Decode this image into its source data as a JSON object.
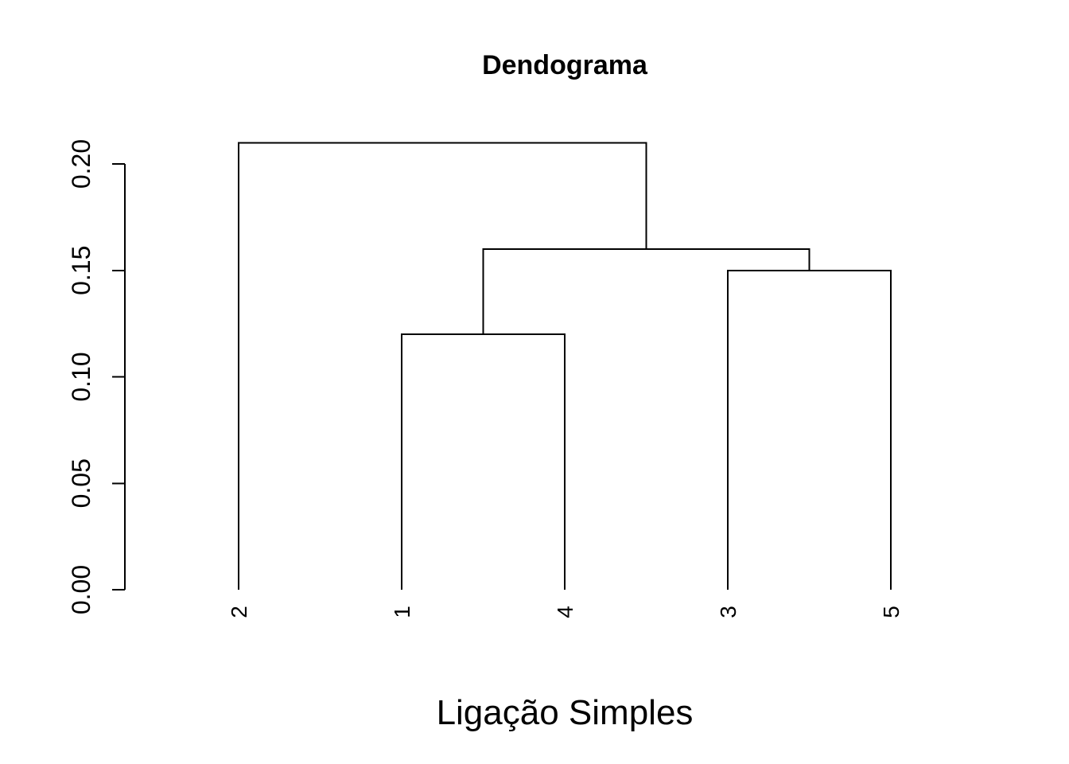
{
  "chart_data": {
    "type": "dendrogram",
    "title": "Dendograma",
    "xlabel": "Ligação Simples",
    "ylabel": "",
    "ylim": [
      0,
      0.21
    ],
    "yticks": [
      0.0,
      0.05,
      0.1,
      0.15,
      0.2
    ],
    "ytick_labels": [
      "0.00",
      "0.05",
      "0.10",
      "0.15",
      "0.20"
    ],
    "leaf_order": [
      "2",
      "1",
      "4",
      "3",
      "5"
    ],
    "merges": [
      {
        "left": "leaf:1",
        "right": "leaf:4",
        "height": 0.12
      },
      {
        "left": "leaf:3",
        "right": "leaf:5",
        "height": 0.15
      },
      {
        "left": "node:0",
        "right": "node:1",
        "height": 0.16
      },
      {
        "left": "leaf:2",
        "right": "node:2",
        "height": 0.21
      }
    ],
    "grid": false,
    "line_color": "#000000"
  }
}
